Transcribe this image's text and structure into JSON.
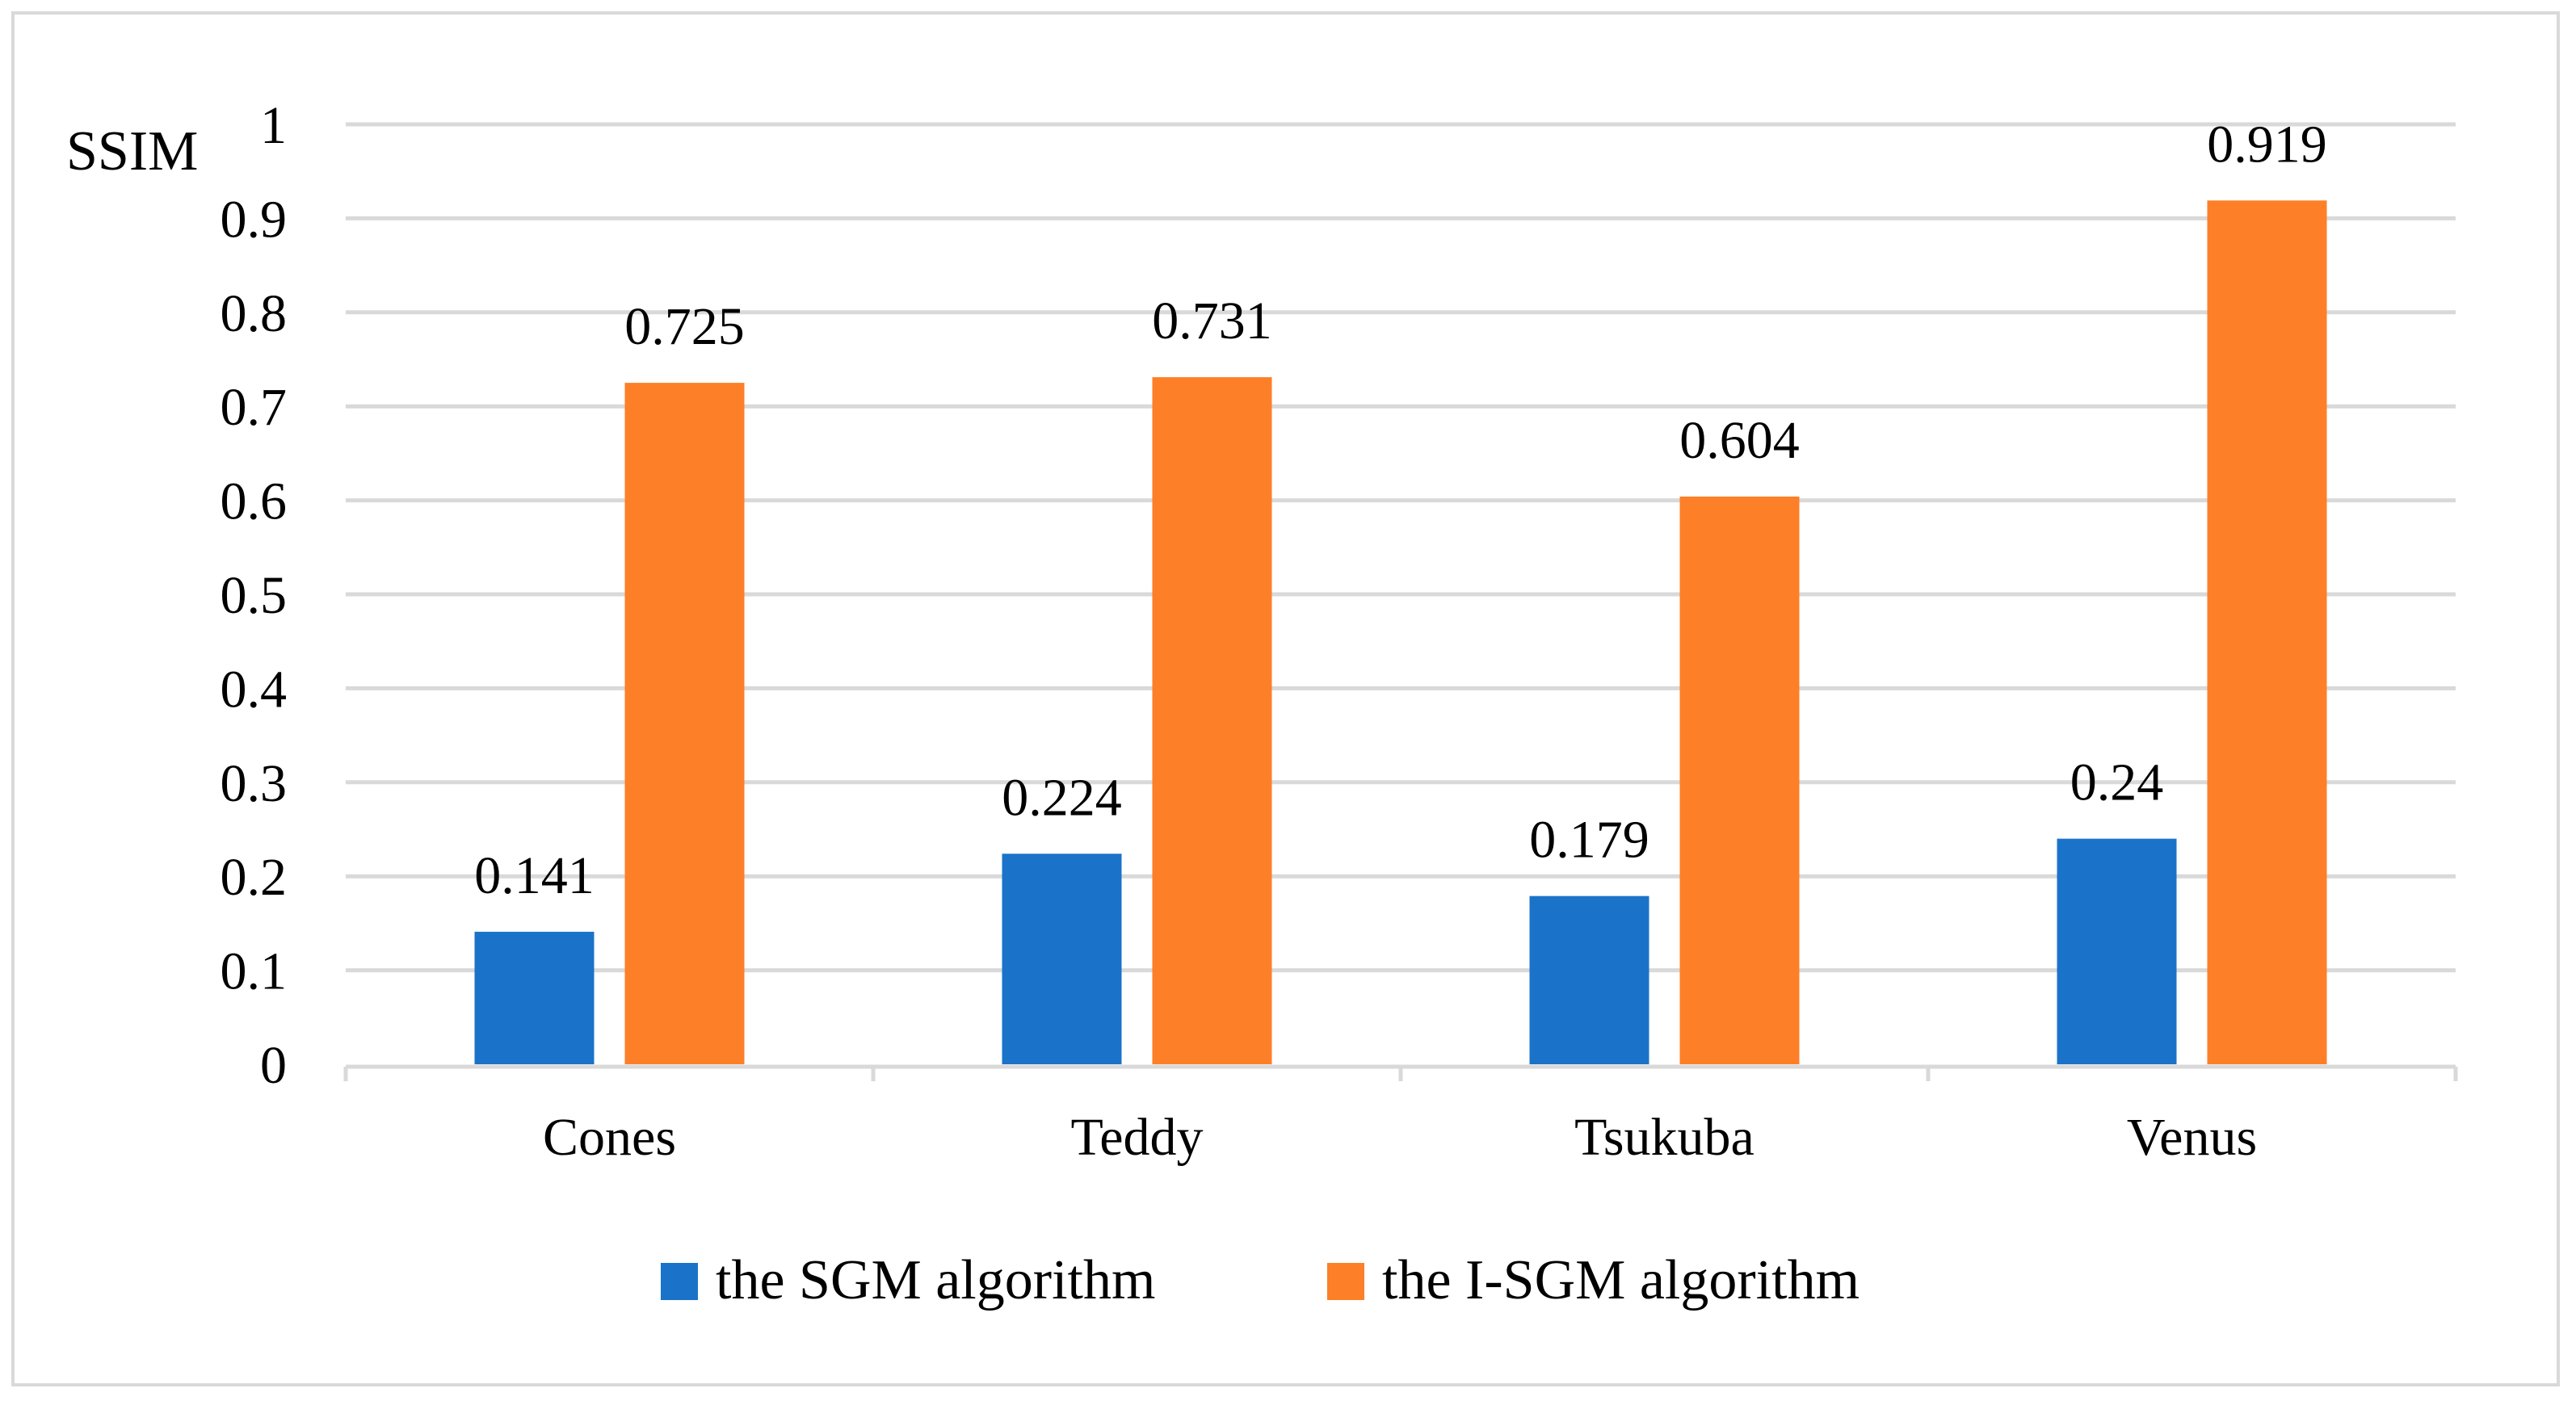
{
  "chart_data": {
    "type": "bar",
    "title": "",
    "xlabel": "",
    "ylabel": "SSIM",
    "categories": [
      "Cones",
      "Teddy",
      "Tsukuba",
      "Venus"
    ],
    "series": [
      {
        "name": "the SGM algorithm",
        "color": "#1a73c8",
        "values": [
          0.141,
          0.224,
          0.179,
          0.24
        ],
        "labels": [
          "0.141",
          "0.224",
          "0.179",
          "0.24"
        ]
      },
      {
        "name": "the I-SGM algorithm",
        "color": "#fd7f28",
        "values": [
          0.725,
          0.731,
          0.604,
          0.919
        ],
        "labels": [
          "0.725",
          "0.731",
          "0.604",
          "0.919"
        ]
      }
    ],
    "ylim": [
      0,
      1
    ],
    "yticks": [
      0,
      0.1,
      0.2,
      0.3,
      0.4,
      0.5,
      0.6,
      0.7,
      0.8,
      0.9,
      1
    ],
    "ytick_labels": [
      "0",
      "0.1",
      "0.2",
      "0.3",
      "0.4",
      "0.5",
      "0.6",
      "0.7",
      "0.8",
      "0.9",
      "1"
    ],
    "grid": true,
    "legend_position": "bottom",
    "gridline_color": "#d9d9d9",
    "axis_color": "#d9d9d9"
  }
}
